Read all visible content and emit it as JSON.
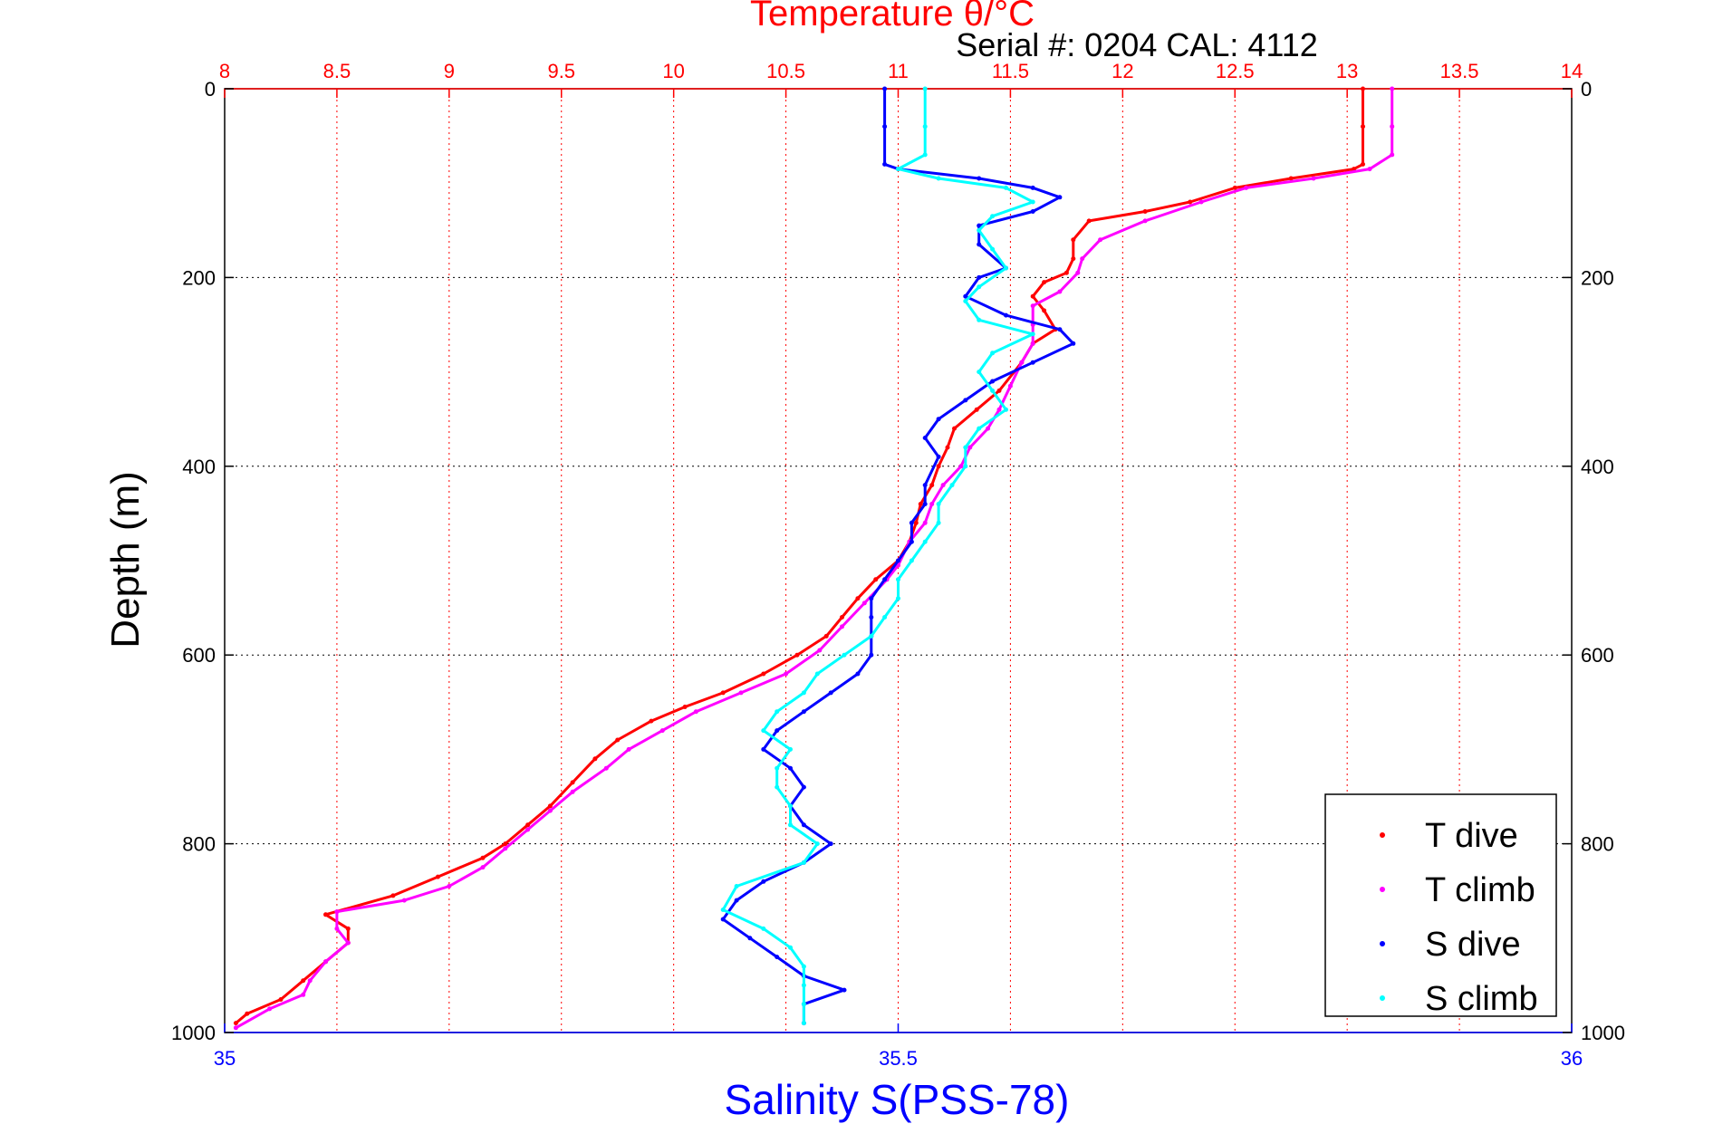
{
  "chart_data": {
    "type": "scatter",
    "title": "Temperature θ/°C",
    "subtitle": "Serial #: 0204  CAL: 4112",
    "ylabel": "Depth (m)",
    "xlabel_bottom": "Salinity S(PSS-78)",
    "xlabel_top": "Temperature θ/°C",
    "y_reversed": true,
    "ylim": [
      0,
      1000
    ],
    "yticks": [
      "0",
      "200",
      "400",
      "600",
      "800",
      "1000"
    ],
    "x_top_lim": [
      8,
      14
    ],
    "x_top_ticks": [
      "8",
      "8.5",
      "9",
      "9.5",
      "10",
      "10.5",
      "11",
      "11.5",
      "12",
      "12.5",
      "13",
      "13.5",
      "14"
    ],
    "x_bottom_lim": [
      35,
      36
    ],
    "x_bottom_ticks": [
      "35",
      "35.5",
      "36"
    ],
    "grid": true,
    "legend_position": "bottom-right",
    "colors": {
      "temperature_axis": "#ff0000",
      "salinity_axis": "#0000ff",
      "t_dive": "#ff0000",
      "t_climb": "#ff00ff",
      "s_dive": "#0000ff",
      "s_climb": "#00ffff"
    },
    "series": [
      {
        "name": "T dive",
        "axis": "temperature",
        "color": "#ff0000",
        "points": [
          [
            13.07,
            0
          ],
          [
            13.07,
            40
          ],
          [
            13.07,
            80
          ],
          [
            13.03,
            85
          ],
          [
            12.75,
            95
          ],
          [
            12.5,
            105
          ],
          [
            12.3,
            120
          ],
          [
            12.1,
            130
          ],
          [
            11.85,
            140
          ],
          [
            11.78,
            160
          ],
          [
            11.78,
            180
          ],
          [
            11.75,
            195
          ],
          [
            11.65,
            205
          ],
          [
            11.6,
            220
          ],
          [
            11.65,
            235
          ],
          [
            11.7,
            255
          ],
          [
            11.6,
            270
          ],
          [
            11.55,
            290
          ],
          [
            11.45,
            320
          ],
          [
            11.35,
            340
          ],
          [
            11.25,
            360
          ],
          [
            11.22,
            380
          ],
          [
            11.18,
            400
          ],
          [
            11.15,
            420
          ],
          [
            11.1,
            440
          ],
          [
            11.08,
            460
          ],
          [
            11.05,
            480
          ],
          [
            11.0,
            500
          ],
          [
            10.9,
            520
          ],
          [
            10.82,
            540
          ],
          [
            10.75,
            560
          ],
          [
            10.68,
            580
          ],
          [
            10.55,
            600
          ],
          [
            10.4,
            620
          ],
          [
            10.22,
            640
          ],
          [
            10.05,
            655
          ],
          [
            9.9,
            670
          ],
          [
            9.75,
            690
          ],
          [
            9.65,
            710
          ],
          [
            9.55,
            735
          ],
          [
            9.45,
            760
          ],
          [
            9.35,
            780
          ],
          [
            9.25,
            800
          ],
          [
            9.15,
            815
          ],
          [
            8.95,
            835
          ],
          [
            8.75,
            855
          ],
          [
            8.45,
            875
          ],
          [
            8.55,
            890
          ],
          [
            8.55,
            905
          ],
          [
            8.45,
            925
          ],
          [
            8.35,
            945
          ],
          [
            8.25,
            965
          ],
          [
            8.1,
            980
          ],
          [
            8.05,
            990
          ]
        ]
      },
      {
        "name": "T climb",
        "axis": "temperature",
        "color": "#ff00ff",
        "points": [
          [
            13.2,
            0
          ],
          [
            13.2,
            40
          ],
          [
            13.2,
            70
          ],
          [
            13.1,
            85
          ],
          [
            12.85,
            95
          ],
          [
            12.55,
            105
          ],
          [
            12.35,
            120
          ],
          [
            12.1,
            140
          ],
          [
            11.9,
            160
          ],
          [
            11.82,
            180
          ],
          [
            11.8,
            195
          ],
          [
            11.72,
            215
          ],
          [
            11.6,
            230
          ],
          [
            11.6,
            250
          ],
          [
            11.6,
            270
          ],
          [
            11.55,
            290
          ],
          [
            11.5,
            315
          ],
          [
            11.45,
            340
          ],
          [
            11.4,
            360
          ],
          [
            11.32,
            380
          ],
          [
            11.28,
            400
          ],
          [
            11.2,
            420
          ],
          [
            11.15,
            440
          ],
          [
            11.12,
            460
          ],
          [
            11.05,
            480
          ],
          [
            11.0,
            505
          ],
          [
            10.95,
            520
          ],
          [
            10.85,
            545
          ],
          [
            10.75,
            570
          ],
          [
            10.65,
            595
          ],
          [
            10.5,
            620
          ],
          [
            10.3,
            640
          ],
          [
            10.1,
            660
          ],
          [
            9.95,
            680
          ],
          [
            9.8,
            700
          ],
          [
            9.7,
            720
          ],
          [
            9.55,
            745
          ],
          [
            9.45,
            765
          ],
          [
            9.35,
            785
          ],
          [
            9.25,
            805
          ],
          [
            9.15,
            825
          ],
          [
            9.0,
            845
          ],
          [
            8.8,
            860
          ],
          [
            8.5,
            872
          ],
          [
            8.5,
            890
          ],
          [
            8.55,
            905
          ],
          [
            8.45,
            925
          ],
          [
            8.38,
            945
          ],
          [
            8.35,
            960
          ],
          [
            8.2,
            975
          ],
          [
            8.05,
            995
          ]
        ]
      },
      {
        "name": "S dive",
        "axis": "salinity",
        "color": "#0000ff",
        "points": [
          [
            35.49,
            0
          ],
          [
            35.49,
            40
          ],
          [
            35.49,
            80
          ],
          [
            35.5,
            85
          ],
          [
            35.56,
            95
          ],
          [
            35.6,
            105
          ],
          [
            35.62,
            115
          ],
          [
            35.6,
            130
          ],
          [
            35.56,
            145
          ],
          [
            35.56,
            165
          ],
          [
            35.58,
            190
          ],
          [
            35.56,
            200
          ],
          [
            35.55,
            220
          ],
          [
            35.58,
            240
          ],
          [
            35.62,
            255
          ],
          [
            35.63,
            270
          ],
          [
            35.6,
            290
          ],
          [
            35.57,
            310
          ],
          [
            35.55,
            330
          ],
          [
            35.53,
            350
          ],
          [
            35.52,
            370
          ],
          [
            35.53,
            390
          ],
          [
            35.52,
            420
          ],
          [
            35.52,
            440
          ],
          [
            35.51,
            460
          ],
          [
            35.51,
            480
          ],
          [
            35.5,
            500
          ],
          [
            35.49,
            520
          ],
          [
            35.48,
            540
          ],
          [
            35.48,
            560
          ],
          [
            35.48,
            580
          ],
          [
            35.48,
            600
          ],
          [
            35.47,
            620
          ],
          [
            35.45,
            640
          ],
          [
            35.43,
            660
          ],
          [
            35.41,
            680
          ],
          [
            35.4,
            700
          ],
          [
            35.42,
            720
          ],
          [
            35.43,
            740
          ],
          [
            35.42,
            760
          ],
          [
            35.43,
            780
          ],
          [
            35.45,
            800
          ],
          [
            35.43,
            820
          ],
          [
            35.4,
            840
          ],
          [
            35.38,
            860
          ],
          [
            35.37,
            880
          ],
          [
            35.39,
            900
          ],
          [
            35.41,
            920
          ],
          [
            35.43,
            940
          ],
          [
            35.46,
            955
          ],
          [
            35.43,
            970
          ],
          [
            35.43,
            990
          ]
        ]
      },
      {
        "name": "S climb",
        "axis": "salinity",
        "color": "#00ffff",
        "points": [
          [
            35.52,
            0
          ],
          [
            35.52,
            40
          ],
          [
            35.52,
            70
          ],
          [
            35.5,
            85
          ],
          [
            35.53,
            95
          ],
          [
            35.58,
            105
          ],
          [
            35.6,
            120
          ],
          [
            35.57,
            135
          ],
          [
            35.56,
            150
          ],
          [
            35.57,
            170
          ],
          [
            35.58,
            190
          ],
          [
            35.56,
            210
          ],
          [
            35.55,
            225
          ],
          [
            35.56,
            245
          ],
          [
            35.6,
            260
          ],
          [
            35.57,
            280
          ],
          [
            35.56,
            300
          ],
          [
            35.57,
            320
          ],
          [
            35.58,
            340
          ],
          [
            35.56,
            360
          ],
          [
            35.55,
            380
          ],
          [
            35.55,
            400
          ],
          [
            35.54,
            420
          ],
          [
            35.53,
            440
          ],
          [
            35.53,
            460
          ],
          [
            35.52,
            480
          ],
          [
            35.51,
            500
          ],
          [
            35.5,
            520
          ],
          [
            35.5,
            540
          ],
          [
            35.49,
            560
          ],
          [
            35.48,
            580
          ],
          [
            35.46,
            600
          ],
          [
            35.44,
            620
          ],
          [
            35.43,
            640
          ],
          [
            35.41,
            660
          ],
          [
            35.4,
            680
          ],
          [
            35.42,
            700
          ],
          [
            35.41,
            720
          ],
          [
            35.41,
            740
          ],
          [
            35.42,
            760
          ],
          [
            35.42,
            780
          ],
          [
            35.44,
            800
          ],
          [
            35.43,
            820
          ],
          [
            35.38,
            845
          ],
          [
            35.37,
            870
          ],
          [
            35.4,
            890
          ],
          [
            35.42,
            910
          ],
          [
            35.43,
            930
          ],
          [
            35.43,
            950
          ],
          [
            35.43,
            970
          ],
          [
            35.43,
            990
          ]
        ]
      }
    ]
  }
}
